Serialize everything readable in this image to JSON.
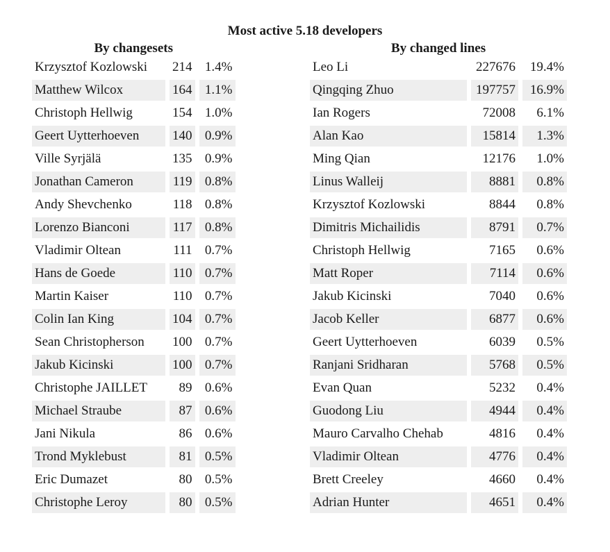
{
  "title": "Most active 5.18 developers",
  "by_changesets": {
    "heading": "By changesets",
    "rows": [
      {
        "name": "Krzysztof Kozlowski",
        "count": "214",
        "pct": "1.4%"
      },
      {
        "name": "Matthew Wilcox",
        "count": "164",
        "pct": "1.1%"
      },
      {
        "name": "Christoph Hellwig",
        "count": "154",
        "pct": "1.0%"
      },
      {
        "name": "Geert Uytterhoeven",
        "count": "140",
        "pct": "0.9%"
      },
      {
        "name": "Ville Syrjälä",
        "count": "135",
        "pct": "0.9%"
      },
      {
        "name": "Jonathan Cameron",
        "count": "119",
        "pct": "0.8%"
      },
      {
        "name": "Andy Shevchenko",
        "count": "118",
        "pct": "0.8%"
      },
      {
        "name": "Lorenzo Bianconi",
        "count": "117",
        "pct": "0.8%"
      },
      {
        "name": "Vladimir Oltean",
        "count": "111",
        "pct": "0.7%"
      },
      {
        "name": "Hans de Goede",
        "count": "110",
        "pct": "0.7%"
      },
      {
        "name": "Martin Kaiser",
        "count": "110",
        "pct": "0.7%"
      },
      {
        "name": "Colin Ian King",
        "count": "104",
        "pct": "0.7%"
      },
      {
        "name": "Sean Christopherson",
        "count": "100",
        "pct": "0.7%"
      },
      {
        "name": "Jakub Kicinski",
        "count": "100",
        "pct": "0.7%"
      },
      {
        "name": "Christophe JAILLET",
        "count": "89",
        "pct": "0.6%"
      },
      {
        "name": "Michael Straube",
        "count": "87",
        "pct": "0.6%"
      },
      {
        "name": "Jani Nikula",
        "count": "86",
        "pct": "0.6%"
      },
      {
        "name": "Trond Myklebust",
        "count": "81",
        "pct": "0.5%"
      },
      {
        "name": "Eric Dumazet",
        "count": "80",
        "pct": "0.5%"
      },
      {
        "name": "Christophe Leroy",
        "count": "80",
        "pct": "0.5%"
      }
    ]
  },
  "by_changed_lines": {
    "heading": "By changed lines",
    "rows": [
      {
        "name": "Leo Li",
        "count": "227676",
        "pct": "19.4%"
      },
      {
        "name": "Qingqing Zhuo",
        "count": "197757",
        "pct": "16.9%"
      },
      {
        "name": "Ian Rogers",
        "count": "72008",
        "pct": "6.1%"
      },
      {
        "name": "Alan Kao",
        "count": "15814",
        "pct": "1.3%"
      },
      {
        "name": "Ming Qian",
        "count": "12176",
        "pct": "1.0%"
      },
      {
        "name": "Linus Walleij",
        "count": "8881",
        "pct": "0.8%"
      },
      {
        "name": "Krzysztof Kozlowski",
        "count": "8844",
        "pct": "0.8%"
      },
      {
        "name": "Dimitris Michailidis",
        "count": "8791",
        "pct": "0.7%"
      },
      {
        "name": "Christoph Hellwig",
        "count": "7165",
        "pct": "0.6%"
      },
      {
        "name": "Matt Roper",
        "count": "7114",
        "pct": "0.6%"
      },
      {
        "name": "Jakub Kicinski",
        "count": "7040",
        "pct": "0.6%"
      },
      {
        "name": "Jacob Keller",
        "count": "6877",
        "pct": "0.6%"
      },
      {
        "name": "Geert Uytterhoeven",
        "count": "6039",
        "pct": "0.5%"
      },
      {
        "name": "Ranjani Sridharan",
        "count": "5768",
        "pct": "0.5%"
      },
      {
        "name": "Evan Quan",
        "count": "5232",
        "pct": "0.4%"
      },
      {
        "name": "Guodong Liu",
        "count": "4944",
        "pct": "0.4%"
      },
      {
        "name": "Mauro Carvalho Chehab",
        "count": "4816",
        "pct": "0.4%"
      },
      {
        "name": "Vladimir Oltean",
        "count": "4776",
        "pct": "0.4%"
      },
      {
        "name": "Brett Creeley",
        "count": "4660",
        "pct": "0.4%"
      },
      {
        "name": "Adrian Hunter",
        "count": "4651",
        "pct": "0.4%"
      }
    ]
  }
}
